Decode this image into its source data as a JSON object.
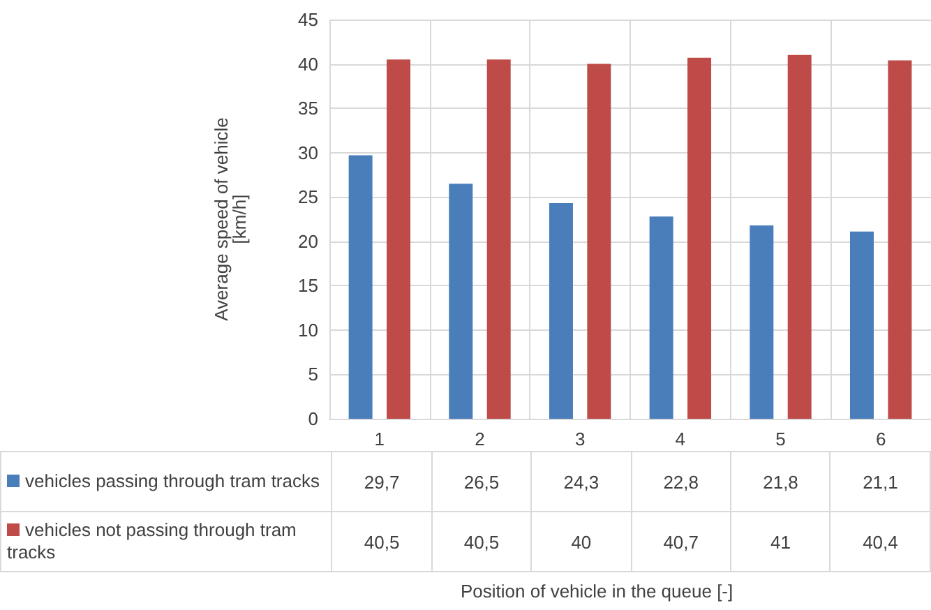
{
  "chart_data": {
    "type": "bar",
    "annotations": [
      "Position of vehicle in the queue [-]"
    ],
    "ylabel": "Average speed of vehicle [km/h]",
    "categories": [
      "1",
      "2",
      "3",
      "4",
      "5",
      "6"
    ],
    "series": [
      {
        "name": "vehicles passing through tram tracks",
        "color": "#4a7ebb",
        "values": [
          29.7,
          26.5,
          24.3,
          22.8,
          21.8,
          21.1
        ],
        "value_labels": [
          "29,7",
          "26,5",
          "24,3",
          "22,8",
          "21,8",
          "21,1"
        ]
      },
      {
        "name": "vehicles not passing through tram tracks",
        "color": "#be4b48",
        "values": [
          40.5,
          40.5,
          40,
          40.7,
          41,
          40.4
        ],
        "value_labels": [
          "40,5",
          "40,5",
          "40",
          "40,7",
          "41",
          "40,4"
        ]
      }
    ],
    "ylim": [
      0,
      45
    ],
    "yticks": [
      0,
      5,
      10,
      15,
      20,
      25,
      30,
      35,
      40,
      45
    ],
    "grid": true,
    "legend": "bottom"
  }
}
